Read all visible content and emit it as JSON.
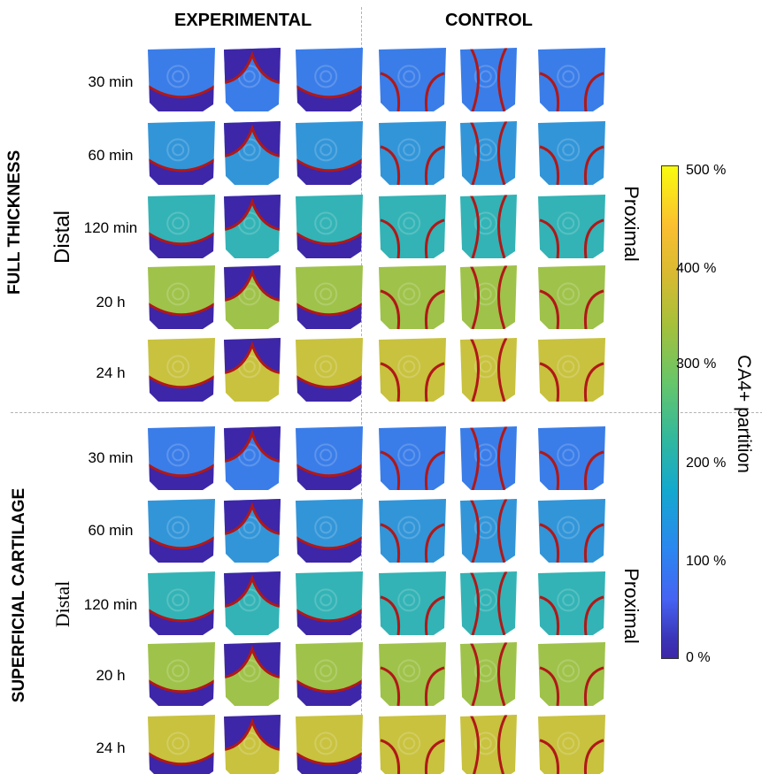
{
  "headers": {
    "experimental": "EXPERIMENTAL",
    "control": "CONTROL"
  },
  "groups": {
    "top": "FULL THICKNESS",
    "bottom": "SUPERFICIAL CARTILAGE"
  },
  "orientation": {
    "distal": "Distal",
    "proximal": "Proximal"
  },
  "times": [
    "30 min",
    "60 min",
    "120 min",
    "20 h",
    "24 h"
  ],
  "colorbar": {
    "title": "CA4+ partition",
    "ticks": [
      "500 %",
      "400 %",
      "300 %",
      "200 %",
      "100 %",
      "0 %"
    ],
    "colormap": "parula"
  },
  "colors": {
    "low": "#3e26a8",
    "background_30": "#3a7de8",
    "background_60": "#3295d8",
    "background_120": "#33b3b5",
    "background_20h": "#9fc24a",
    "background_24h": "#c8c23f",
    "boundary": "#b01818"
  }
}
